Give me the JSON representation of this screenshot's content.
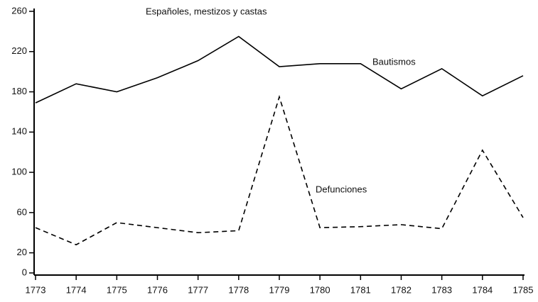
{
  "chart_data": {
    "type": "line",
    "title": "Españoles, mestizos y castas",
    "x": [
      1773,
      1774,
      1775,
      1776,
      1777,
      1778,
      1779,
      1780,
      1781,
      1782,
      1783,
      1784,
      1785
    ],
    "series": [
      {
        "name": "Bautismos",
        "color": "#000000",
        "dash": "solid",
        "values": [
          169,
          188,
          180,
          194,
          211,
          235,
          205,
          208,
          208,
          183,
          203,
          176,
          196
        ]
      },
      {
        "name": "Defunciones",
        "color": "#000000",
        "dash": "dashed",
        "values": [
          45,
          28,
          50,
          45,
          40,
          42,
          175,
          45,
          46,
          48,
          44,
          122,
          55
        ]
      }
    ],
    "xlim": [
      1773,
      1785
    ],
    "xticks": [
      1773,
      1774,
      1775,
      1776,
      1777,
      1778,
      1779,
      1780,
      1781,
      1782,
      1783,
      1784,
      1785
    ],
    "ylim": [
      0,
      260
    ],
    "yticks": [
      0,
      20,
      60,
      100,
      140,
      180,
      220,
      260
    ],
    "grid": false
  }
}
